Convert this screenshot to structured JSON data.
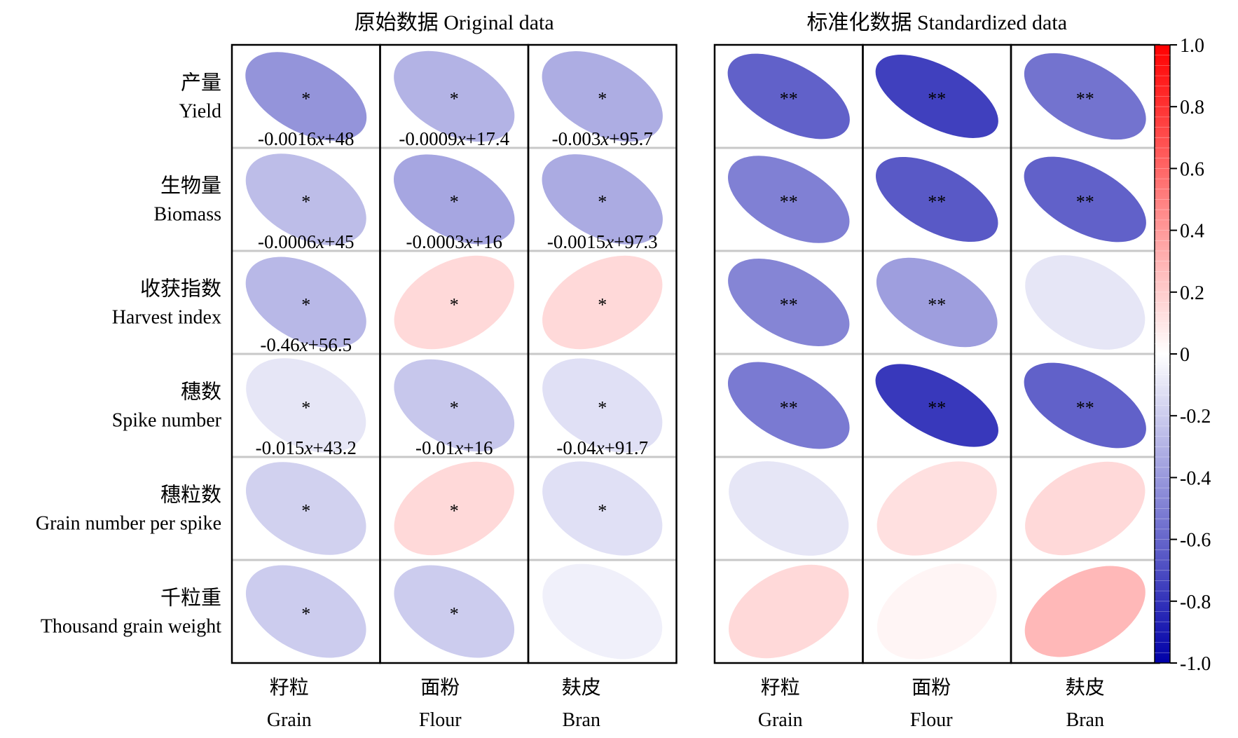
{
  "chart_data": [
    {
      "type": "heatmap",
      "marker": "ellipse",
      "title": "原始数据 Original data",
      "rows": [
        {
          "zh": "产量",
          "en": "Yield"
        },
        {
          "zh": "生物量",
          "en": "Biomass"
        },
        {
          "zh": "收获指数",
          "en": "Harvest index"
        },
        {
          "zh": "穗数",
          "en": "Spike number"
        },
        {
          "zh": "穗粒数",
          "en": "Grain number per spike"
        },
        {
          "zh": "千粒重",
          "en": "Thousand grain weight"
        }
      ],
      "columns": [
        {
          "zh": "籽粒",
          "en": "Grain"
        },
        {
          "zh": "面粉",
          "en": "Flour"
        },
        {
          "zh": "麸皮",
          "en": "Bran"
        }
      ],
      "values": [
        [
          -0.42,
          -0.3,
          -0.32
        ],
        [
          -0.26,
          -0.35,
          -0.33
        ],
        [
          -0.28,
          0.15,
          0.15
        ],
        [
          -0.1,
          -0.22,
          -0.12
        ],
        [
          -0.18,
          0.15,
          -0.12
        ],
        [
          -0.2,
          -0.2,
          -0.06
        ]
      ],
      "significance": [
        [
          "*",
          "*",
          "*"
        ],
        [
          "*",
          "*",
          "*"
        ],
        [
          "*",
          "*",
          "*"
        ],
        [
          "*",
          "*",
          "*"
        ],
        [
          "*",
          "*",
          "*"
        ],
        [
          "*",
          "*",
          ""
        ]
      ],
      "equations": [
        [
          "-0.0016x+48",
          "-0.0009x+17.4",
          "-0.003x+95.7"
        ],
        [
          "-0.0006x+45",
          "-0.0003x+16",
          "-0.0015x+97.3"
        ],
        [
          "-0.46x+56.5",
          "",
          ""
        ],
        [
          "-0.015x+43.2",
          "-0.01x+16",
          "-0.04x+91.7"
        ],
        [
          "",
          "",
          ""
        ],
        [
          "",
          "",
          ""
        ]
      ]
    },
    {
      "type": "heatmap",
      "marker": "ellipse",
      "title": "标准化数据 Standardized data",
      "rows": [
        {
          "zh": "产量",
          "en": "Yield"
        },
        {
          "zh": "生物量",
          "en": "Biomass"
        },
        {
          "zh": "收获指数",
          "en": "Harvest index"
        },
        {
          "zh": "穗数",
          "en": "Spike number"
        },
        {
          "zh": "穗粒数",
          "en": "Grain number per spike"
        },
        {
          "zh": "千粒重",
          "en": "Thousand grain weight"
        }
      ],
      "columns": [
        {
          "zh": "籽粒",
          "en": "Grain"
        },
        {
          "zh": "面粉",
          "en": "Flour"
        },
        {
          "zh": "麸皮",
          "en": "Bran"
        }
      ],
      "values": [
        [
          -0.62,
          -0.75,
          -0.55
        ],
        [
          -0.5,
          -0.65,
          -0.62
        ],
        [
          -0.48,
          -0.38,
          -0.1
        ],
        [
          -0.52,
          -0.78,
          -0.62
        ],
        [
          -0.1,
          0.12,
          0.15
        ],
        [
          0.15,
          0.04,
          0.28
        ]
      ],
      "significance": [
        [
          "**",
          "**",
          "**"
        ],
        [
          "**",
          "**",
          "**"
        ],
        [
          "**",
          "**",
          ""
        ],
        [
          "**",
          "**",
          "**"
        ],
        [
          "",
          "",
          ""
        ],
        [
          "",
          "",
          ""
        ]
      ],
      "equations": [
        [
          "",
          "",
          ""
        ],
        [
          "",
          "",
          ""
        ],
        [
          "",
          "",
          ""
        ],
        [
          "",
          "",
          ""
        ],
        [
          "",
          "",
          ""
        ],
        [
          "",
          "",
          ""
        ]
      ]
    }
  ],
  "colorbar": {
    "range": [
      -1.0,
      1.0
    ],
    "ticks": [
      1.0,
      0.8,
      0.6,
      0.4,
      0.2,
      0,
      -0.2,
      -0.4,
      -0.6,
      -0.8,
      -1.0
    ],
    "tick_labels": [
      "1.0",
      "0.8",
      "0.6",
      "0.4",
      "0.2",
      "0",
      "-0.2",
      "-0.4",
      "-0.6",
      "-0.8",
      "-1.0"
    ],
    "colors": {
      "negative": "#0000a8",
      "zero": "#ffffff",
      "positive": "#ff0000"
    }
  }
}
